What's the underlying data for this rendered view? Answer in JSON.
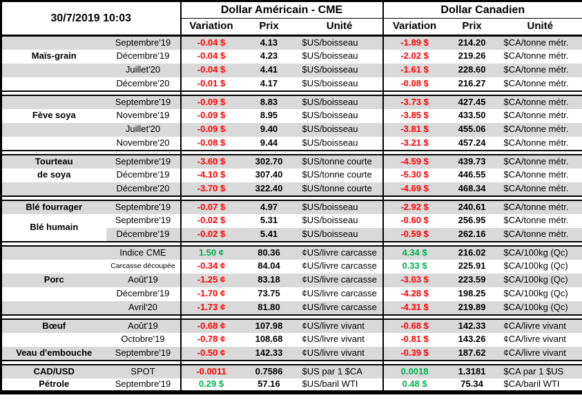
{
  "colors": {
    "negative_variation": "#ff0000",
    "positive_variation": "#00b050",
    "row_shade": "#d9d9d9",
    "border": "#000000"
  },
  "header": {
    "datetime": "30/7/2019 10:03",
    "usd_group_title": "Dollar Américain - CME",
    "cad_group_title": "Dollar Canadien",
    "col_variation": "Variation",
    "col_price": "Prix",
    "col_unit": "Unité"
  },
  "sections": [
    {
      "id": "mais-grain",
      "rows": [
        {
          "cat": "",
          "month": "Septembre'19",
          "usVar": "-0.04 $",
          "usPrix": "4.13",
          "usUnit": "$US/boisseau",
          "caVar": "-1.89 $",
          "caPrix": "214.20",
          "caUnit": "$CA/tonne métr.",
          "shaded": true
        },
        {
          "cat": "Maïs-grain",
          "month": "Décembre'19",
          "usVar": "-0.04 $",
          "usPrix": "4.23",
          "usUnit": "$US/boisseau",
          "caVar": "-2.02 $",
          "caPrix": "219.26",
          "caUnit": "$CA/tonne métr.",
          "shaded": false
        },
        {
          "cat": "",
          "month": "Juillet'20",
          "usVar": "-0.04 $",
          "usPrix": "4.41",
          "usUnit": "$US/boisseau",
          "caVar": "-1.61 $",
          "caPrix": "228.60",
          "caUnit": "$CA/tonne métr.",
          "shaded": true
        },
        {
          "cat": "",
          "month": "Décembre'20",
          "usVar": "-0.01 $",
          "usPrix": "4.17",
          "usUnit": "$US/boisseau",
          "caVar": "-0.08 $",
          "caPrix": "216.27",
          "caUnit": "$CA/tonne métr.",
          "shaded": false
        }
      ]
    },
    {
      "id": "feve-soya",
      "rows": [
        {
          "cat": "",
          "month": "Septembre'19",
          "usVar": "-0.09 $",
          "usPrix": "8.83",
          "usUnit": "$US/boisseau",
          "caVar": "-3.73 $",
          "caPrix": "427.45",
          "caUnit": "$CA/tonne métr.",
          "shaded": true
        },
        {
          "cat": "Fève soya",
          "month": "Novembre'19",
          "usVar": "-0.09 $",
          "usPrix": "8.95",
          "usUnit": "$US/boisseau",
          "caVar": "-3.85 $",
          "caPrix": "433.50",
          "caUnit": "$CA/tonne métr.",
          "shaded": false
        },
        {
          "cat": "",
          "month": "Juillet'20",
          "usVar": "-0.09 $",
          "usPrix": "9.40",
          "usUnit": "$US/boisseau",
          "caVar": "-3.81 $",
          "caPrix": "455.06",
          "caUnit": "$CA/tonne métr.",
          "shaded": true
        },
        {
          "cat": "",
          "month": "Novembre'20",
          "usVar": "-0.08 $",
          "usPrix": "9.44",
          "usUnit": "$US/boisseau",
          "caVar": "-3.21 $",
          "caPrix": "457.24",
          "caUnit": "$CA/tonne métr.",
          "shaded": false
        }
      ]
    },
    {
      "id": "tourteau-de-soya",
      "rows": [
        {
          "cat": "Tourteau",
          "month": "Septembre'19",
          "usVar": "-3.60 $",
          "usPrix": "302.70",
          "usUnit": "$US/tonne courte",
          "caVar": "-4.59 $",
          "caPrix": "439.73",
          "caUnit": "$CA/tonne métr.",
          "shaded": true
        },
        {
          "cat": "de soya",
          "month": "Décembre'19",
          "usVar": "-4.10 $",
          "usPrix": "307.40",
          "usUnit": "$US/tonne courte",
          "caVar": "-5.30 $",
          "caPrix": "446.55",
          "caUnit": "$CA/tonne métr.",
          "shaded": false
        },
        {
          "cat": "",
          "month": "Décembre'20",
          "usVar": "-3.70 $",
          "usPrix": "322.40",
          "usUnit": "$US/tonne courte",
          "caVar": "-4.69 $",
          "caPrix": "468.34",
          "caUnit": "$CA/tonne métr.",
          "shaded": true
        }
      ]
    },
    {
      "id": "ble",
      "rows": [
        {
          "cat": "Blé fourrager",
          "month": "Septembre'19",
          "usVar": "-0.07 $",
          "usPrix": "4.97",
          "usUnit": "$US/boisseau",
          "caVar": "-2.92 $",
          "caPrix": "240.61",
          "caUnit": "$CA/tonne métr.",
          "shaded": true
        },
        {
          "cat": "Blé humain",
          "catRowspan": 2,
          "catWhite": true,
          "month": "Septembre'19",
          "usVar": "-0.02 $",
          "usPrix": "5.31",
          "usUnit": "$US/boisseau",
          "caVar": "-0.60 $",
          "caPrix": "256.95",
          "caUnit": "$CA/tonne métr.",
          "shaded": false
        },
        {
          "catSkip": true,
          "month": "Décembre'19",
          "usVar": "-0.02 $",
          "usPrix": "5.41",
          "usUnit": "$US/boisseau",
          "caVar": "-0.59 $",
          "caPrix": "262.16",
          "caUnit": "$CA/tonne métr.",
          "shaded": true
        }
      ]
    },
    {
      "id": "porc",
      "rows": [
        {
          "cat": "",
          "month": "Indice CME",
          "usVar": "1.50 ¢",
          "usPrix": "80.36",
          "usUnit": "¢US/livre carcasse",
          "caVar": "4.34 $",
          "caPrix": "216.02",
          "caUnit": "$CA/100kg (Qc)",
          "shaded": true
        },
        {
          "cat": "",
          "month": "Carcasse découpée",
          "monthSmall": true,
          "usVar": "-0.34 ¢",
          "usPrix": "84.04",
          "usUnit": "¢US/livre carcasse",
          "caVar": "0.33 $",
          "caPrix": "225.91",
          "caUnit": "$CA/100kg (Qc)",
          "shaded": false
        },
        {
          "cat": "Porc",
          "month": "Août'19",
          "usVar": "-1.25 ¢",
          "usPrix": "83.18",
          "usUnit": "¢US/livre carcasse",
          "caVar": "-3.03 $",
          "caPrix": "223.59",
          "caUnit": "$CA/100kg (Qc)",
          "shaded": true
        },
        {
          "cat": "",
          "month": "Décembre'19",
          "usVar": "-1.70 ¢",
          "usPrix": "73.75",
          "usUnit": "¢US/livre carcasse",
          "caVar": "-4.28 $",
          "caPrix": "198.25",
          "caUnit": "$CA/100kg (Qc)",
          "shaded": false
        },
        {
          "cat": "",
          "month": "Avril'20",
          "usVar": "-1.73 ¢",
          "usPrix": "81.80",
          "usUnit": "¢US/livre carcasse",
          "caVar": "-4.31 $",
          "caPrix": "219.89",
          "caUnit": "$CA/100kg (Qc)",
          "shaded": true
        }
      ]
    },
    {
      "id": "boeuf-veau",
      "rows": [
        {
          "cat": "Bœuf",
          "month": "Août'19",
          "usVar": "-0.68 ¢",
          "usPrix": "107.98",
          "usUnit": "¢US/livre vivant",
          "caVar": "-0.68 $",
          "caPrix": "142.33",
          "caUnit": "¢CA/livre vivant",
          "shaded": true
        },
        {
          "cat": "",
          "month": "Octobre'19",
          "usVar": "-0.78 ¢",
          "usPrix": "108.68",
          "usUnit": "¢US/livre vivant",
          "caVar": "-0.81 $",
          "caPrix": "143.26",
          "caUnit": "¢CA/livre vivant",
          "shaded": false
        },
        {
          "cat": "Veau d'embouche",
          "month": "Septembre'19",
          "usVar": "-0.50 ¢",
          "usPrix": "142.33",
          "usUnit": "¢US/livre vivant",
          "caVar": "-0.39 $",
          "caPrix": "187.62",
          "caUnit": "¢CA/livre vivant",
          "shaded": true
        }
      ]
    },
    {
      "id": "cad-usd-petrole",
      "rows": [
        {
          "cat": "CAD/USD",
          "month": "SPOT",
          "usVar": "-0.0011",
          "usPrix": "0.7586",
          "usUnit": "$US par 1 $CA",
          "caVar": "0.0018",
          "caPrix": "1.3181",
          "caUnit": "$CA par 1 $US",
          "shaded": true
        },
        {
          "cat": "Pétrole",
          "month": "Septembre'19",
          "usVar": "0.29 $",
          "usPrix": "57.16",
          "usUnit": "$US/baril WTI",
          "caVar": "0.48 $",
          "caPrix": "75.34",
          "caUnit": "$CA/baril WTI",
          "shaded": false
        }
      ]
    }
  ]
}
